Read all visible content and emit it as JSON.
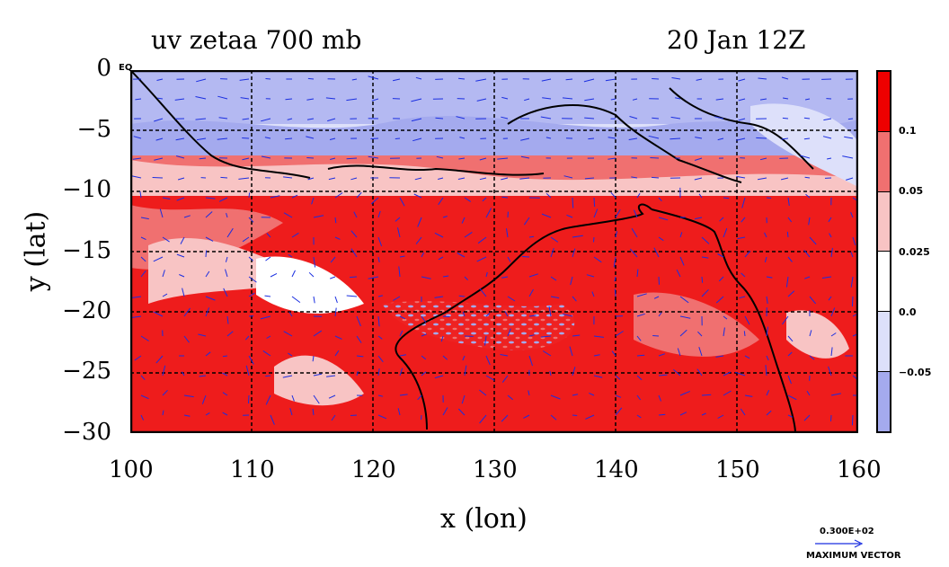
{
  "header": {
    "title_left": "uv zetaa 700 mb",
    "title_right": "20 Jan 12Z"
  },
  "axes": {
    "ylabel": "y (lat)",
    "xlabel": "x (lon)",
    "x_ticks": [
      "100",
      "110",
      "120",
      "130",
      "140",
      "150",
      "160"
    ],
    "y_ticks": [
      "0",
      "−5",
      "−10",
      "−15",
      "−20",
      "−25",
      "−30"
    ],
    "corner_label": "EQ"
  },
  "colorbar": {
    "labels": [
      "0.1",
      "0.05",
      "0.025",
      "0.0",
      "−0.05"
    ],
    "colors": [
      "#ee0000",
      "#f07070",
      "#f8c4c4",
      "#ffffff",
      "#dde0fa",
      "#a4aaee"
    ]
  },
  "vector_key": {
    "value": "0.300E+02",
    "caption": "MAXIMUM VECTOR"
  },
  "colors": {
    "frame": "#000000",
    "grid": "#000000",
    "vectors": "#1a2ee0",
    "coast": "#000000"
  }
}
